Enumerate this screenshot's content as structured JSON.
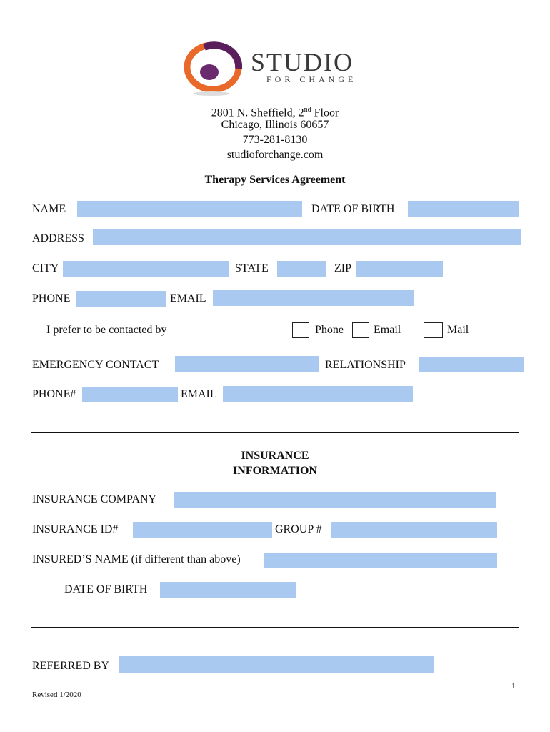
{
  "logo": {
    "name": "STUDIO",
    "tagline": "FOR CHANGE",
    "colors": {
      "orange": "#e8692a",
      "purple": "#5a1e5c"
    }
  },
  "address": {
    "street_pre": "2801 N. Sheffield, 2",
    "street_sup": "nd",
    "street_post": " Floor",
    "city": "Chicago, Illinois 60657",
    "phone": "773-281-8130",
    "web": "studioforchange.com"
  },
  "title": "Therapy Services Agreement",
  "labels": {
    "name": "NAME",
    "dob": "DATE OF BIRTH",
    "address": "ADDRESS",
    "city": "CITY",
    "state": "STATE",
    "zip": "ZIP",
    "phone": "PHONE",
    "email": "EMAIL",
    "prefer": "I prefer to be contacted by",
    "opt_phone": "Phone",
    "opt_email": "Email",
    "opt_mail": "Mail",
    "emergency": "EMERGENCY CONTACT",
    "relationship": "RELATIONSHIP",
    "phone2": "PHONE#",
    "email2": "EMAIL"
  },
  "insurance": {
    "heading1": "INSURANCE",
    "heading2": "INFORMATION",
    "company": "INSURANCE COMPANY",
    "id": "INSURANCE ID#",
    "group": "GROUP #",
    "insured": "INSURED’S NAME (if different than above)",
    "dob": "DATE OF BIRTH"
  },
  "referred": "REFERRED BY",
  "page_number": "1",
  "revised": "Revised 1/2020",
  "field_color": "#a9c9f1"
}
